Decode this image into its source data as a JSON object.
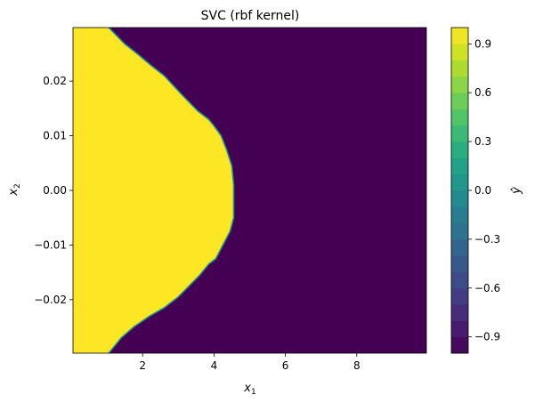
{
  "chart_data": {
    "type": "heatmap",
    "title": "SVC (rbf kernel)",
    "xlabel": "x",
    "xlabel_sub": "1",
    "ylabel": "x",
    "ylabel_sub": "2",
    "xlim": [
      0.05,
      9.95
    ],
    "ylim": [
      -0.0298,
      0.0298
    ],
    "xticks": [
      2,
      4,
      6,
      8
    ],
    "xtick_labels": [
      "2",
      "4",
      "6",
      "8"
    ],
    "yticks": [
      -0.02,
      -0.01,
      0.0,
      0.01,
      0.02
    ],
    "ytick_labels": [
      "−0.02",
      "−0.01",
      "0.00",
      "0.01",
      "0.02"
    ],
    "classes": [
      {
        "value": 1,
        "color": "#fde725"
      },
      {
        "value": -1,
        "color": "#440154"
      }
    ],
    "boundary_color": "#21918c",
    "decision_boundary": [
      {
        "x1": 1.05,
        "x2": 0.0298
      },
      {
        "x1": 1.5,
        "x2": 0.0268
      },
      {
        "x1": 1.85,
        "x2": 0.025
      },
      {
        "x1": 2.25,
        "x2": 0.0228
      },
      {
        "x1": 2.6,
        "x2": 0.021
      },
      {
        "x1": 3.1,
        "x2": 0.0175
      },
      {
        "x1": 3.55,
        "x2": 0.0145
      },
      {
        "x1": 3.85,
        "x2": 0.013
      },
      {
        "x1": 4.0,
        "x2": 0.0118
      },
      {
        "x1": 4.2,
        "x2": 0.01
      },
      {
        "x1": 4.35,
        "x2": 0.0075
      },
      {
        "x1": 4.5,
        "x2": 0.0045
      },
      {
        "x1": 4.55,
        "x2": 0.001
      },
      {
        "x1": 4.55,
        "x2": -0.005
      },
      {
        "x1": 4.45,
        "x2": -0.0075
      },
      {
        "x1": 4.25,
        "x2": -0.01
      },
      {
        "x1": 4.05,
        "x2": -0.0125
      },
      {
        "x1": 3.85,
        "x2": -0.0135
      },
      {
        "x1": 3.6,
        "x2": -0.0155
      },
      {
        "x1": 3.0,
        "x2": -0.0195
      },
      {
        "x1": 2.6,
        "x2": -0.0215
      },
      {
        "x1": 2.2,
        "x2": -0.023
      },
      {
        "x1": 1.75,
        "x2": -0.025
      },
      {
        "x1": 1.4,
        "x2": -0.027
      },
      {
        "x1": 1.05,
        "x2": -0.0298
      }
    ],
    "colorbar": {
      "label": "ŷ",
      "vmin": -1.0,
      "vmax": 1.0,
      "levels": 20,
      "tick_values": [
        -0.9,
        -0.6,
        -0.3,
        0.0,
        0.3,
        0.6,
        0.9
      ],
      "tick_labels": [
        "−0.9",
        "−0.6",
        "−0.3",
        "0.0",
        "0.3",
        "0.6",
        "0.9"
      ],
      "colormap": "viridis"
    },
    "grid": false
  }
}
